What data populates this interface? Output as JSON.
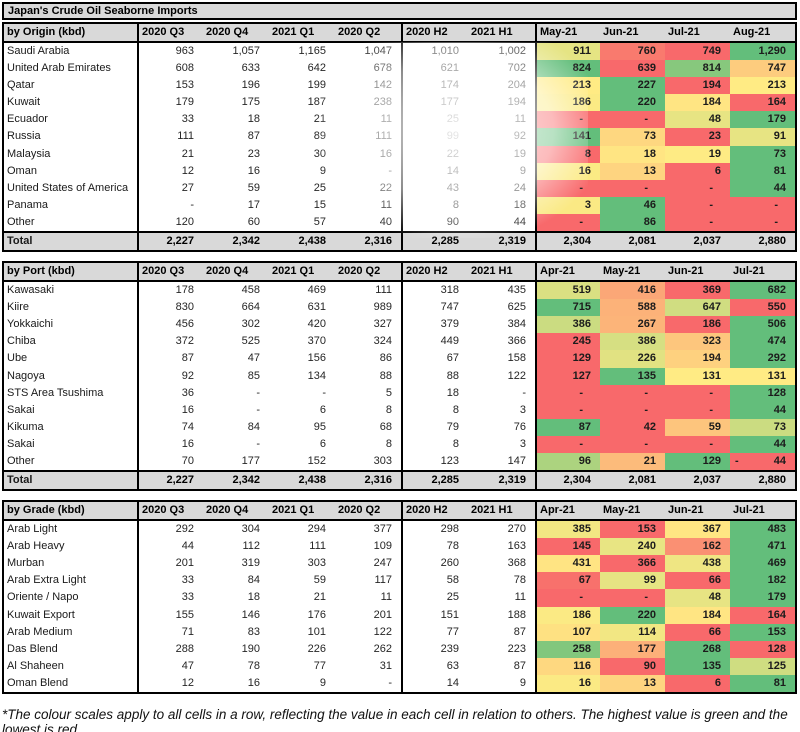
{
  "footnote": "*The colour scales apply to all cells in a row, reflecting the value in each cell in relation to others. The highest value is green and the lowest is red.",
  "chart_data": {
    "type": "table",
    "title": "Japan's Crude Oil Seaborne Imports",
    "units": "kbd",
    "heatmap_rule": "3-colour scale per row across the month columns: lowest value red, 50th percentile yellow, highest green; '-' counts as 0",
    "colors": {
      "scale_low": "#F8696B",
      "scale_mid": "#FFEB84",
      "scale_high": "#63BE7B",
      "header_bg": "#D9D9D9",
      "border": "#000000"
    },
    "sections": [
      {
        "key": "origin",
        "label_header": "by Origin (kbd)",
        "quarter_headers": [
          "2020 Q3",
          "2020 Q4",
          "2021 Q1",
          "2020 Q2"
        ],
        "half_headers": [
          "2020 H2",
          "2021 H1"
        ],
        "month_headers": [
          "May-21",
          "Jun-21",
          "Jul-21",
          "Aug-21"
        ],
        "rows": [
          {
            "label": "Saudi Arabia",
            "quarters": [
              "963",
              "1,057",
              "1,165",
              "1,047"
            ],
            "halves": [
              "1,010",
              "1,002"
            ],
            "months": [
              "911",
              "760",
              "749",
              "1,290"
            ]
          },
          {
            "label": "United Arab Emirates",
            "quarters": [
              "608",
              "633",
              "642",
              "678"
            ],
            "halves": [
              "621",
              "702"
            ],
            "months": [
              "824",
              "639",
              "814",
              "747"
            ]
          },
          {
            "label": "Qatar",
            "quarters": [
              "153",
              "196",
              "199",
              "142"
            ],
            "halves": [
              "174",
              "204"
            ],
            "months": [
              "213",
              "227",
              "194",
              "213"
            ]
          },
          {
            "label": "Kuwait",
            "quarters": [
              "179",
              "175",
              "187",
              "238"
            ],
            "halves": [
              "177",
              "194"
            ],
            "months": [
              "186",
              "220",
              "184",
              "164"
            ]
          },
          {
            "label": "Ecuador",
            "quarters": [
              "33",
              "18",
              "21",
              "11"
            ],
            "halves": [
              "25",
              "11"
            ],
            "months": [
              "-",
              "-",
              "48",
              "179"
            ]
          },
          {
            "label": "Russia",
            "quarters": [
              "111",
              "87",
              "89",
              "111"
            ],
            "halves": [
              "99",
              "92"
            ],
            "months": [
              "141",
              "73",
              "23",
              "91"
            ]
          },
          {
            "label": "Malaysia",
            "quarters": [
              "21",
              "23",
              "30",
              "16"
            ],
            "halves": [
              "22",
              "19"
            ],
            "months": [
              "8",
              "18",
              "19",
              "73"
            ]
          },
          {
            "label": "Oman",
            "quarters": [
              "12",
              "16",
              "9",
              "-"
            ],
            "halves": [
              "14",
              "9"
            ],
            "months": [
              "16",
              "13",
              "6",
              "81"
            ]
          },
          {
            "label": "United States of America",
            "quarters": [
              "27",
              "59",
              "25",
              "22"
            ],
            "halves": [
              "43",
              "24"
            ],
            "months": [
              "-",
              "-",
              "-",
              "44"
            ]
          },
          {
            "label": "Panama",
            "quarters": [
              "-",
              "17",
              "15",
              "11"
            ],
            "halves": [
              "8",
              "18"
            ],
            "months": [
              "3",
              "46",
              "-",
              "-"
            ]
          },
          {
            "label": "Other",
            "quarters": [
              "120",
              "60",
              "57",
              "40"
            ],
            "halves": [
              "90",
              "44"
            ],
            "months": [
              "-",
              "86",
              "-",
              "-"
            ]
          }
        ],
        "total": {
          "label": "Total",
          "quarters": [
            "2,227",
            "2,342",
            "2,438",
            "2,316"
          ],
          "halves": [
            "2,285",
            "2,319"
          ],
          "months": [
            "2,304",
            "2,081",
            "2,037",
            "2,880"
          ]
        }
      },
      {
        "key": "port",
        "label_header": "by Port (kbd)",
        "quarter_headers": [
          "2020 Q3",
          "2020 Q4",
          "2021 Q1",
          "2020 Q2"
        ],
        "half_headers": [
          "2020 H2",
          "2021 H1"
        ],
        "month_headers": [
          "Apr-21",
          "May-21",
          "Jun-21",
          "Jul-21"
        ],
        "rows": [
          {
            "label": "Kawasaki",
            "quarters": [
              "178",
              "458",
              "469",
              "111"
            ],
            "halves": [
              "318",
              "435"
            ],
            "months": [
              "519",
              "416",
              "369",
              "682"
            ]
          },
          {
            "label": "Kiire",
            "quarters": [
              "830",
              "664",
              "631",
              "989"
            ],
            "halves": [
              "747",
              "625"
            ],
            "months": [
              "715",
              "588",
              "647",
              "550"
            ]
          },
          {
            "label": "Yokkaichi",
            "quarters": [
              "456",
              "302",
              "420",
              "327"
            ],
            "halves": [
              "379",
              "384"
            ],
            "months": [
              "386",
              "267",
              "186",
              "506"
            ]
          },
          {
            "label": "Chiba",
            "quarters": [
              "372",
              "525",
              "370",
              "324"
            ],
            "halves": [
              "449",
              "366"
            ],
            "months": [
              "245",
              "386",
              "323",
              "474"
            ]
          },
          {
            "label": "Ube",
            "quarters": [
              "87",
              "47",
              "156",
              "86"
            ],
            "halves": [
              "67",
              "158"
            ],
            "months": [
              "129",
              "226",
              "194",
              "292"
            ]
          },
          {
            "label": "Nagoya",
            "quarters": [
              "92",
              "85",
              "134",
              "88"
            ],
            "halves": [
              "88",
              "122"
            ],
            "months": [
              "127",
              "135",
              "131",
              "131"
            ]
          },
          {
            "label": "STS Area Tsushima",
            "quarters": [
              "36",
              "-",
              "-",
              "5"
            ],
            "halves": [
              "18",
              "-"
            ],
            "months": [
              "-",
              "-",
              "-",
              "128"
            ]
          },
          {
            "label": "Sakai",
            "quarters": [
              "16",
              "-",
              "6",
              "8"
            ],
            "halves": [
              "8",
              "3"
            ],
            "months": [
              "-",
              "-",
              "-",
              "44"
            ]
          },
          {
            "label": "Kikuma",
            "quarters": [
              "74",
              "84",
              "95",
              "68"
            ],
            "halves": [
              "79",
              "76"
            ],
            "months": [
              "87",
              "42",
              "59",
              "73"
            ]
          },
          {
            "label": "Sakai",
            "quarters": [
              "16",
              "-",
              "6",
              "8"
            ],
            "halves": [
              "8",
              "3"
            ],
            "months": [
              "-",
              "-",
              "-",
              "44"
            ]
          },
          {
            "label": "Other",
            "quarters": [
              "70",
              "177",
              "152",
              "303"
            ],
            "halves": [
              "123",
              "147"
            ],
            "months": [
              "96",
              "21",
              "129",
              "- 44"
            ]
          }
        ],
        "total": {
          "label": "Total",
          "quarters": [
            "2,227",
            "2,342",
            "2,438",
            "2,316"
          ],
          "halves": [
            "2,285",
            "2,319"
          ],
          "months": [
            "2,304",
            "2,081",
            "2,037",
            "2,880"
          ]
        }
      },
      {
        "key": "grade",
        "label_header": "by Grade (kbd)",
        "quarter_headers": [
          "2020 Q3",
          "2020 Q4",
          "2021 Q1",
          "2020 Q2"
        ],
        "half_headers": [
          "2020 H2",
          "2021 H1"
        ],
        "month_headers": [
          "Apr-21",
          "May-21",
          "Jun-21",
          "Jul-21"
        ],
        "rows": [
          {
            "label": "Arab Light",
            "quarters": [
              "292",
              "304",
              "294",
              "377"
            ],
            "halves": [
              "298",
              "270"
            ],
            "months": [
              "385",
              "153",
              "367",
              "483"
            ]
          },
          {
            "label": "Arab Heavy",
            "quarters": [
              "44",
              "112",
              "111",
              "109"
            ],
            "halves": [
              "78",
              "163"
            ],
            "months": [
              "145",
              "240",
              "162",
              "471"
            ]
          },
          {
            "label": "Murban",
            "quarters": [
              "201",
              "319",
              "303",
              "247"
            ],
            "halves": [
              "260",
              "368"
            ],
            "months": [
              "431",
              "366",
              "438",
              "469"
            ]
          },
          {
            "label": "Arab Extra Light",
            "quarters": [
              "33",
              "84",
              "59",
              "117"
            ],
            "halves": [
              "58",
              "78"
            ],
            "months": [
              "67",
              "99",
              "66",
              "182"
            ]
          },
          {
            "label": "Oriente / Napo",
            "quarters": [
              "33",
              "18",
              "21",
              "11"
            ],
            "halves": [
              "25",
              "11"
            ],
            "months": [
              "-",
              "-",
              "48",
              "179"
            ]
          },
          {
            "label": "Kuwait Export",
            "quarters": [
              "155",
              "146",
              "176",
              "201"
            ],
            "halves": [
              "151",
              "188"
            ],
            "months": [
              "186",
              "220",
              "184",
              "164"
            ]
          },
          {
            "label": "Arab Medium",
            "quarters": [
              "71",
              "83",
              "101",
              "122"
            ],
            "halves": [
              "77",
              "87"
            ],
            "months": [
              "107",
              "114",
              "66",
              "153"
            ]
          },
          {
            "label": "Das Blend",
            "quarters": [
              "288",
              "190",
              "226",
              "262"
            ],
            "halves": [
              "239",
              "223"
            ],
            "months": [
              "258",
              "177",
              "268",
              "128"
            ]
          },
          {
            "label": "Al Shaheen",
            "quarters": [
              "47",
              "78",
              "77",
              "31"
            ],
            "halves": [
              "63",
              "87"
            ],
            "months": [
              "116",
              "90",
              "135",
              "125"
            ]
          },
          {
            "label": "Oman Blend",
            "quarters": [
              "12",
              "16",
              "9",
              "-"
            ],
            "halves": [
              "14",
              "9"
            ],
            "months": [
              "16",
              "13",
              "6",
              "81"
            ]
          }
        ],
        "total": null
      }
    ]
  }
}
